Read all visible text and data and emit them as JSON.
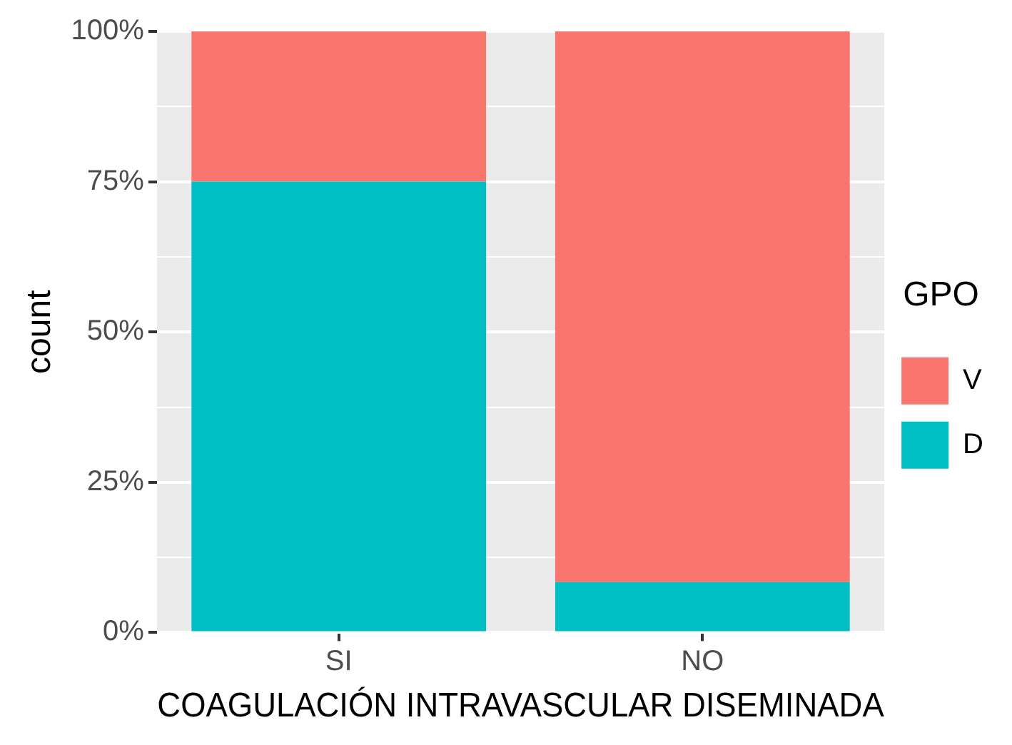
{
  "chart_data": {
    "type": "bar",
    "xlabel": "COAGULACIÓN INTRAVASCULAR DISEMINADA",
    "ylabel": "count",
    "legend_title": "GPO",
    "categories": [
      "SI",
      "NO"
    ],
    "series": [
      {
        "name": "D",
        "color": "#00bfc4",
        "values": [
          75,
          8.4
        ]
      },
      {
        "name": "V",
        "color": "#f8766d",
        "values": [
          25,
          91.6
        ]
      }
    ],
    "stacked": true,
    "ylim": [
      0,
      100
    ],
    "yticks": [
      {
        "value": 0,
        "label": "0%"
      },
      {
        "value": 12.5,
        "label": null
      },
      {
        "value": 25,
        "label": "25%"
      },
      {
        "value": 37.5,
        "label": null
      },
      {
        "value": 50,
        "label": "50%"
      },
      {
        "value": 62.5,
        "label": null
      },
      {
        "value": 75,
        "label": "75%"
      },
      {
        "value": 87.5,
        "label": null
      },
      {
        "value": 100,
        "label": "100%"
      }
    ],
    "grid": true,
    "legend": "right"
  }
}
